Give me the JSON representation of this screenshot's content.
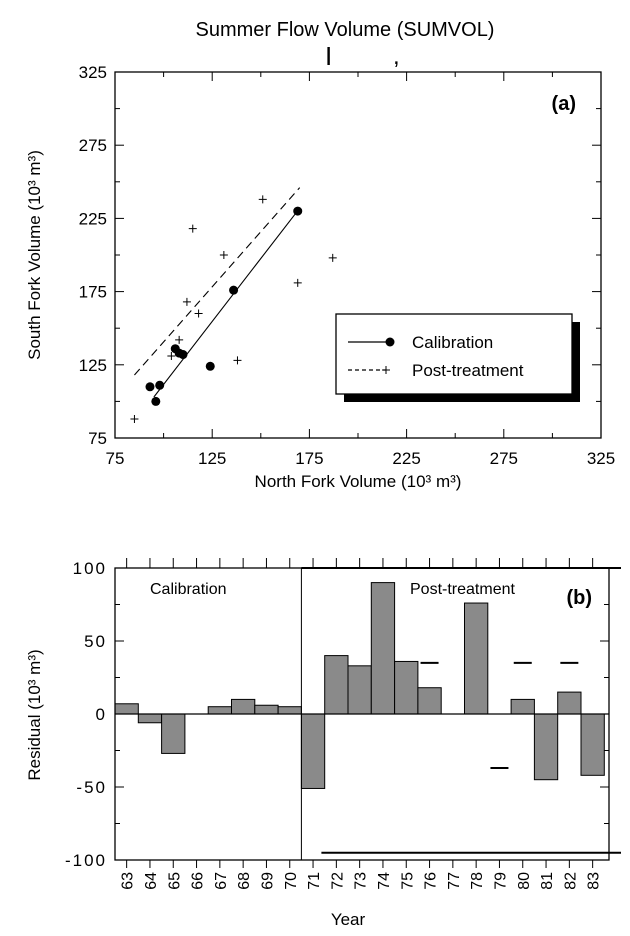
{
  "figure": {
    "title": "Summer Flow Volume (SUMVOL)"
  },
  "chart_data": [
    {
      "type": "scatter",
      "panel_label": "(a)",
      "xlabel": "North Fork Volume (10³ m³)",
      "ylabel": "South Fork Volume (10³ m³)",
      "xlim": [
        75,
        325
      ],
      "ylim": [
        75,
        325
      ],
      "x_ticks": [
        "75",
        "125",
        "175",
        "225",
        "275",
        "325"
      ],
      "y_ticks": [
        "75",
        "125",
        "175",
        "225",
        "275",
        "325"
      ],
      "stray_marks": [
        "I",
        ","
      ],
      "legend_position": "lower-right",
      "series": [
        {
          "name": "Calibration",
          "marker": "filled-circle",
          "line": "solid",
          "points": [
            {
              "x": 93,
              "y": 110
            },
            {
              "x": 96,
              "y": 100
            },
            {
              "x": 98,
              "y": 111
            },
            {
              "x": 106,
              "y": 136
            },
            {
              "x": 108,
              "y": 133
            },
            {
              "x": 110,
              "y": 132
            },
            {
              "x": 124,
              "y": 124
            },
            {
              "x": 136,
              "y": 176
            },
            {
              "x": 169,
              "y": 230
            }
          ],
          "fit_line": [
            {
              "x": 95,
              "y": 103
            },
            {
              "x": 170,
              "y": 232
            }
          ]
        },
        {
          "name": "Post-treatment",
          "marker": "plus",
          "line": "dashed",
          "points": [
            {
              "x": 85,
              "y": 88
            },
            {
              "x": 104,
              "y": 131
            },
            {
              "x": 108,
              "y": 142
            },
            {
              "x": 112,
              "y": 168
            },
            {
              "x": 115,
              "y": 218
            },
            {
              "x": 118,
              "y": 160
            },
            {
              "x": 131,
              "y": 200
            },
            {
              "x": 138,
              "y": 128
            },
            {
              "x": 151,
              "y": 238
            },
            {
              "x": 169,
              "y": 181
            },
            {
              "x": 187,
              "y": 198
            }
          ],
          "fit_line": [
            {
              "x": 85,
              "y": 118
            },
            {
              "x": 170,
              "y": 246
            }
          ]
        }
      ]
    },
    {
      "type": "bar",
      "panel_label": "(b)",
      "xlabel": "Year",
      "ylabel": "Residual (10³ m³)",
      "ylim": [
        -100,
        100
      ],
      "y_ticks": [
        "100",
        "50",
        "0",
        "-50",
        "-100"
      ],
      "y_tick_values": [
        100,
        50,
        0,
        -50,
        -100
      ],
      "categories": [
        "63",
        "64",
        "65",
        "66",
        "67",
        "68",
        "69",
        "70",
        "71",
        "72",
        "73",
        "74",
        "75",
        "76",
        "77",
        "78",
        "79",
        "80",
        "81",
        "82",
        "83"
      ],
      "values": [
        7,
        -6,
        -27,
        0,
        5,
        10,
        6,
        5,
        -51,
        40,
        33,
        90,
        36,
        18,
        0,
        76,
        0,
        10,
        -45,
        15,
        -42
      ],
      "period_labels": {
        "calibration": "Calibration",
        "post_treatment": "Post-treatment"
      },
      "period_split_after": "70",
      "reference_dashes": [
        {
          "year": "76",
          "value": 35
        },
        {
          "year": "79",
          "value": -37
        },
        {
          "year": "80",
          "value": 35
        },
        {
          "year": "82",
          "value": 35
        }
      ]
    }
  ]
}
